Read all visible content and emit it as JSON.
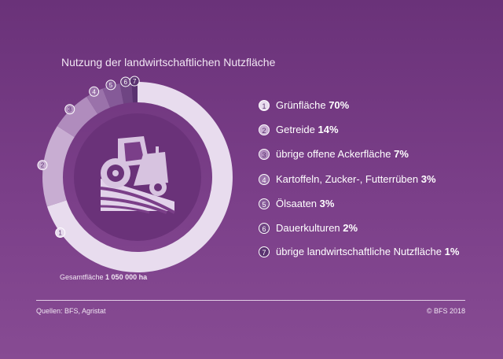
{
  "chart_data": {
    "type": "pie",
    "title": "Nutzung der landwirtschaftlichen Nutzfläche",
    "total_label": "Gesamtfläche",
    "total_value": "1 050 000 ha",
    "categories": [
      "Grünfläche",
      "Getreide",
      "übrige offene Ackerfläche",
      "Kartoffeln, Zucker-, Futterrüben",
      "Ölsaaten",
      "Dauerkulturen",
      "übrige landwirtschaftliche Nutzfläche"
    ],
    "values": [
      70,
      14,
      7,
      3,
      3,
      2,
      1
    ],
    "value_labels": [
      "70%",
      "14%",
      "7%",
      "3%",
      "3%",
      "2%",
      "1%"
    ],
    "slice_numbers": [
      "1",
      "2",
      "3",
      "4",
      "5",
      "6",
      "7"
    ],
    "colors": [
      "#e8dcee",
      "#c8add2",
      "#b08cbd",
      "#9a72aa",
      "#855a98",
      "#6f4583",
      "#5a3270"
    ]
  },
  "footer": {
    "source": "Quellen: BFS, Agristat",
    "copyright": "© BFS 2018"
  },
  "icon": "tractor-icon"
}
